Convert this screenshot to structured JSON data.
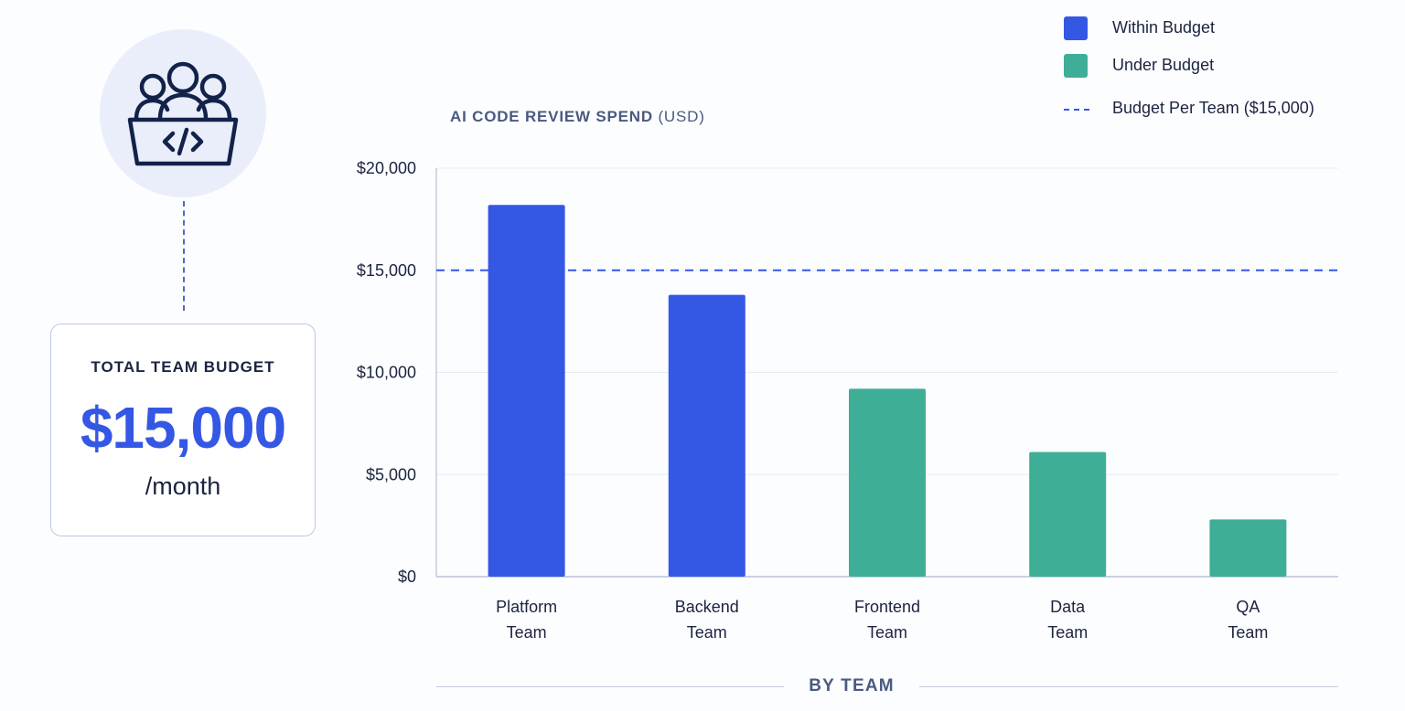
{
  "summary_card": {
    "label": "TOTAL TEAM BUDGET",
    "amount": "$15,000",
    "period": "/month",
    "icon": "team-code-icon"
  },
  "legend": {
    "items": [
      {
        "label": "Within Budget",
        "color": "#3457e4",
        "kind": "swatch"
      },
      {
        "label": "Under Budget",
        "color": "#3fae97",
        "kind": "swatch"
      },
      {
        "label": "Budget Per Team ($15,000)",
        "color": "#3457e4",
        "kind": "dashed-line"
      }
    ]
  },
  "chart_data": {
    "type": "bar",
    "title": "AI CODE REVIEW SPEND",
    "title_unit": "(USD)",
    "xlabel": "BY TEAM",
    "categories": [
      [
        "Platform",
        "Team"
      ],
      [
        "Backend",
        "Team"
      ],
      [
        "Frontend",
        "Team"
      ],
      [
        "Data",
        "Team"
      ],
      [
        "QA",
        "Team"
      ]
    ],
    "values": [
      18200,
      13800,
      9200,
      6100,
      2800
    ],
    "colors": [
      "#3457e4",
      "#3457e4",
      "#3fae97",
      "#3fae97",
      "#3fae97"
    ],
    "ylim": [
      0,
      20000
    ],
    "yticks": [
      0,
      5000,
      10000,
      15000,
      20000
    ],
    "ytick_labels": [
      "$0",
      "$5,000",
      "$10,000",
      "$15,000",
      "$20,000"
    ],
    "reference_line": {
      "value": 15000,
      "style": "dashed",
      "color": "#3457e4"
    },
    "grid": true
  }
}
